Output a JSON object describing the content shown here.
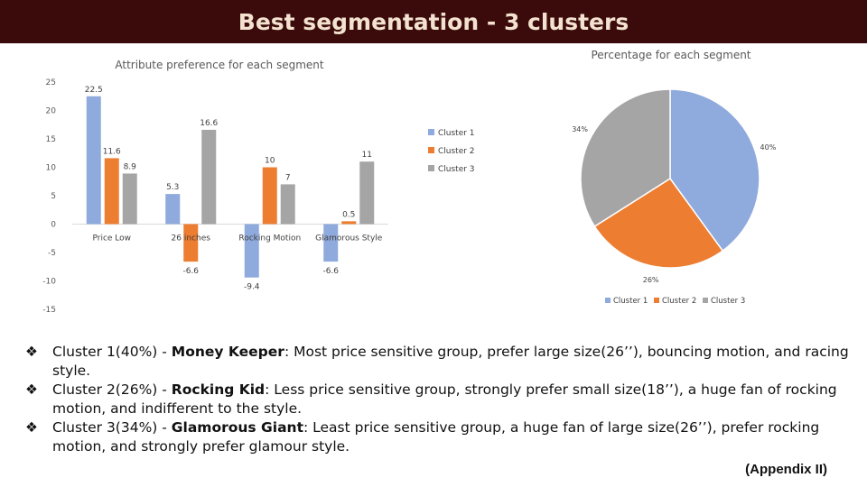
{
  "slide": {
    "title": "Best segmentation - 3 clusters",
    "appendix": "(Appendix II)"
  },
  "colors": {
    "cluster_1": "#8faadc",
    "cluster_2": "#ed7d31",
    "cluster_3": "#a5a5a5",
    "title_bar": "#3b0b0b",
    "title_text": "#f3e2cf"
  },
  "chart_data": [
    {
      "type": "bar",
      "title": "Attribute preference for each segment",
      "categories": [
        "Price Low",
        "26 inches",
        "Rocking Motion",
        "Glamorous Style"
      ],
      "series": [
        {
          "name": "Cluster 1",
          "values": [
            22.5,
            5.3,
            -9.4,
            -6.6
          ]
        },
        {
          "name": "Cluster 2",
          "values": [
            11.6,
            -6.6,
            10,
            0.5
          ]
        },
        {
          "name": "Cluster 3",
          "values": [
            8.9,
            16.6,
            7,
            11
          ]
        }
      ],
      "ylim": [
        -15,
        25
      ],
      "yticks": [
        25,
        20,
        15,
        10,
        5,
        0,
        -5,
        -10,
        -15
      ],
      "grid": false,
      "legend": "right"
    },
    {
      "type": "pie",
      "title": "Percentage for each segment",
      "labels": [
        "Cluster 1",
        "Cluster 2",
        "Cluster 3"
      ],
      "values": [
        40,
        26,
        34
      ],
      "value_labels": [
        "40%",
        "26%",
        "34%"
      ],
      "legend": "bottom"
    }
  ],
  "bullets": [
    {
      "icon": "diamond-bullet-icon",
      "glyph": "❖",
      "prefix": "Cluster 1(40%) - ",
      "name": "Money Keeper",
      "text": ": Most price sensitive group, prefer large size(26’’), bouncing motion, and racing style."
    },
    {
      "icon": "diamond-bullet-icon",
      "glyph": "❖",
      "prefix": "Cluster 2(26%) - ",
      "name": "Rocking Kid",
      "text": ": Less price sensitive group, strongly prefer small size(18’’), a huge fan of rocking motion, and indifferent to the style."
    },
    {
      "icon": "diamond-bullet-icon",
      "glyph": "❖",
      "prefix": "Cluster 3(34%) - ",
      "name": "Glamorous Giant",
      "text": ": Least price sensitive group, a huge fan of large size(26’’), prefer rocking motion, and strongly prefer glamour style."
    }
  ]
}
